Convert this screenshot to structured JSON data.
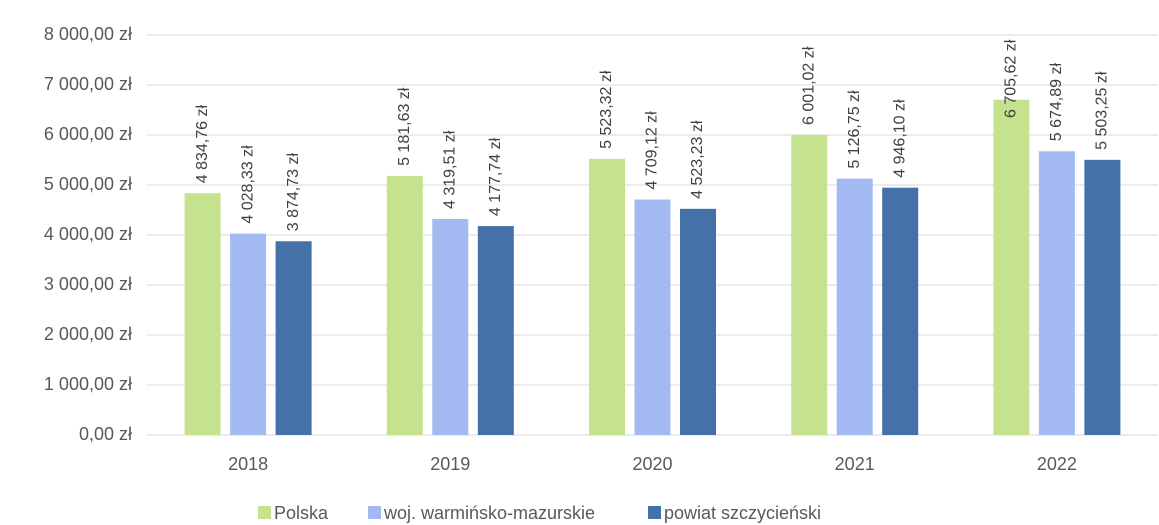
{
  "chart_data": {
    "type": "bar",
    "categories": [
      "2018",
      "2019",
      "2020",
      "2021",
      "2022"
    ],
    "series": [
      {
        "name": "Polska",
        "color": "#c5e28e",
        "values": [
          4834.76,
          5181.63,
          5523.32,
          6001.02,
          6705.62
        ],
        "value_labels": [
          "4 834,76 zł",
          "5 181,63 zł",
          "5 523,32 zł",
          "6 001,02 zł",
          "6 705,62 zł"
        ]
      },
      {
        "name": "woj. warmińsko-mazurskie",
        "color": "#a2b9f2",
        "values": [
          4028.33,
          4319.51,
          4709.12,
          5126.75,
          5674.89
        ],
        "value_labels": [
          "4 028,33 zł",
          "4 319,51 zł",
          "4 709,12 zł",
          "5 126,75 zł",
          "5 674,89 zł"
        ]
      },
      {
        "name": "powiat szczycieński",
        "color": "#4472a8",
        "values": [
          3874.73,
          4177.74,
          4523.23,
          4946.1,
          5503.25
        ],
        "value_labels": [
          "3 874,73 zł",
          "4 177,74 zł",
          "4 523,23 zł",
          "4 946,10 zł",
          "5 503,25 zł"
        ]
      }
    ],
    "ylim": [
      0,
      8000
    ],
    "yticks": [
      {
        "value": 0,
        "label": "0,00 zł"
      },
      {
        "value": 1000,
        "label": "1 000,00 zł"
      },
      {
        "value": 2000,
        "label": "2 000,00 zł"
      },
      {
        "value": 3000,
        "label": "3 000,00 zł"
      },
      {
        "value": 4000,
        "label": "4 000,00 zł"
      },
      {
        "value": 5000,
        "label": "5 000,00 zł"
      },
      {
        "value": 6000,
        "label": "6 000,00 zł"
      },
      {
        "value": 7000,
        "label": "7 000,00 zł"
      },
      {
        "value": 8000,
        "label": "8 000,00 zł"
      }
    ],
    "grid": true,
    "legend": "bottom"
  }
}
